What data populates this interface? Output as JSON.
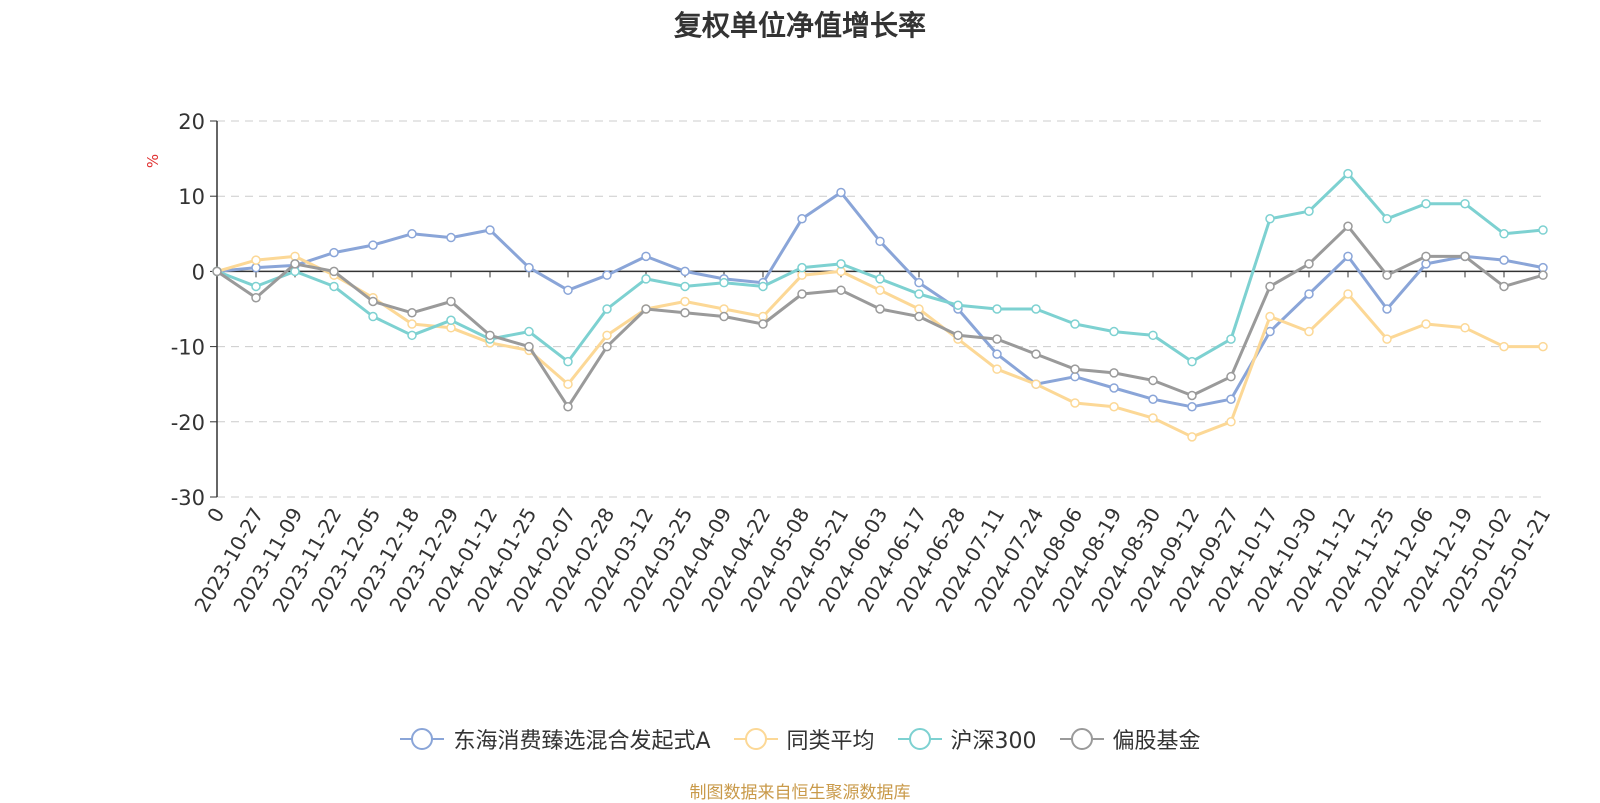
{
  "title": "复权单位净值增长率",
  "source": "制图数据来自恒生聚源数据库",
  "chart_data": {
    "type": "line",
    "title": "复权单位净值增长率",
    "ylabel": "%",
    "ylim": [
      -30,
      20
    ],
    "yticks": [
      -30,
      -20,
      -10,
      0,
      10,
      20
    ],
    "grid": true,
    "legend_position": "bottom",
    "categories": [
      "0",
      "2023-10-27",
      "2023-11-09",
      "2023-11-22",
      "2023-12-05",
      "2023-12-18",
      "2023-12-29",
      "2024-01-12",
      "2024-01-25",
      "2024-02-07",
      "2024-02-28",
      "2024-03-12",
      "2024-03-25",
      "2024-04-09",
      "2024-04-22",
      "2024-05-08",
      "2024-05-21",
      "2024-06-03",
      "2024-06-17",
      "2024-06-28",
      "2024-07-11",
      "2024-07-24",
      "2024-08-06",
      "2024-08-19",
      "2024-08-30",
      "2024-09-12",
      "2024-09-27",
      "2024-10-17",
      "2024-10-30",
      "2024-11-12",
      "2024-11-25",
      "2024-12-06",
      "2024-12-19",
      "2025-01-02",
      "2025-01-21"
    ],
    "series": [
      {
        "name": "东海消费臻选混合发起式A",
        "color": "#8aa5d8",
        "values": [
          0,
          0.5,
          0.8,
          2.5,
          3.5,
          5,
          4.5,
          5.5,
          0.5,
          -2.5,
          -0.5,
          2,
          0,
          -1,
          -1.5,
          7,
          10.5,
          4,
          -1.5,
          -5,
          -11,
          -15,
          -14,
          -15.5,
          -17,
          -18,
          -17,
          -8,
          -3,
          2,
          -5,
          1,
          2,
          1.5,
          0.5
        ]
      },
      {
        "name": "同类平均",
        "color": "#fcd896",
        "values": [
          0,
          1.5,
          2,
          -0.5,
          -3.5,
          -7,
          -7.5,
          -9.5,
          -10.5,
          -15,
          -8.5,
          -5,
          -4,
          -5,
          -6,
          -0.5,
          0,
          -2.5,
          -5,
          -9,
          -13,
          -15,
          -17.5,
          -18,
          -19.5,
          -22,
          -20,
          -6,
          -8,
          -3,
          -9,
          -7,
          -7.5,
          -10,
          -10
        ]
      },
      {
        "name": "沪深300",
        "color": "#7dd1d1",
        "values": [
          0,
          -2,
          0,
          -2,
          -6,
          -8.5,
          -6.5,
          -9,
          -8,
          -12,
          -5,
          -1,
          -2,
          -1.5,
          -2,
          0.5,
          1,
          -1,
          -3,
          -4.5,
          -5,
          -5,
          -7,
          -8,
          -8.5,
          -12,
          -9,
          7,
          8,
          13,
          7,
          9,
          9,
          5,
          5.5
        ]
      },
      {
        "name": "偏股基金",
        "color": "#9a9a9a",
        "values": [
          0,
          -3.5,
          1,
          0,
          -4,
          -5.5,
          -4,
          -8.5,
          -10,
          -18,
          -10,
          -5,
          -5.5,
          -6,
          -7,
          -3,
          -2.5,
          -5,
          -6,
          -8.5,
          -9,
          -11,
          -13,
          -13.5,
          -14.5,
          -16.5,
          -14,
          -2,
          1,
          6,
          -0.5,
          2,
          2,
          -2,
          -0.5
        ]
      }
    ]
  }
}
